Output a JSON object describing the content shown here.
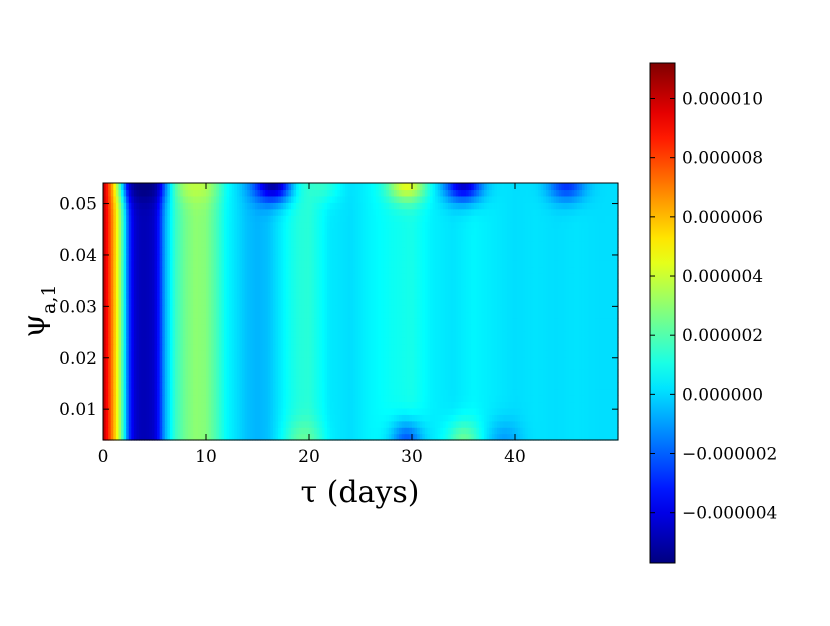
{
  "chart_data": {
    "type": "heatmap",
    "title": "",
    "xlabel": "τ (days)",
    "ylabel": "ψ",
    "ylabel_subscript": "a,1",
    "xlim": [
      0,
      50
    ],
    "ylim": [
      0.004,
      0.054
    ],
    "x_ticks": [
      {
        "value": 0,
        "label": "0"
      },
      {
        "value": 10,
        "label": "10"
      },
      {
        "value": 20,
        "label": "20"
      },
      {
        "value": 30,
        "label": "30"
      },
      {
        "value": 40,
        "label": "40"
      }
    ],
    "y_ticks": [
      {
        "value": 0.01,
        "label": "0.01"
      },
      {
        "value": 0.02,
        "label": "0.02"
      },
      {
        "value": 0.03,
        "label": "0.03"
      },
      {
        "value": 0.04,
        "label": "0.04"
      },
      {
        "value": 0.05,
        "label": "0.05"
      }
    ],
    "colormap": "jet",
    "color_range": [
      -5.7e-06,
      1.12e-05
    ],
    "colorbar_ticks": [
      {
        "value": 1e-05,
        "label": "0.000010"
      },
      {
        "value": 8e-06,
        "label": "0.000008"
      },
      {
        "value": 6e-06,
        "label": "0.000006"
      },
      {
        "value": 4e-06,
        "label": "0.000004"
      },
      {
        "value": 2e-06,
        "label": "0.000002"
      },
      {
        "value": 0.0,
        "label": "0.000000"
      },
      {
        "value": -2e-06,
        "label": "−0.000002"
      },
      {
        "value": -4e-06,
        "label": "−0.000004"
      }
    ],
    "x_profile": {
      "tau": [
        0,
        0.5,
        1,
        1.5,
        2,
        2.5,
        3,
        3.5,
        4,
        4.5,
        5,
        5.5,
        6,
        7,
        8,
        9,
        10,
        11,
        12,
        13,
        14,
        15,
        16,
        17,
        18,
        19,
        20,
        21,
        22,
        24,
        26,
        28,
        30,
        32,
        34,
        36,
        38,
        40,
        42,
        44,
        46,
        48,
        50
      ],
      "value": [
        1.05e-05,
        8.5e-06,
        6.5e-06,
        4e-06,
        1.2e-06,
        -2.5e-06,
        -4.2e-06,
        -4.7e-06,
        -4.8e-06,
        -4.7e-06,
        -4.4e-06,
        -3e-06,
        -8e-07,
        1.5e-06,
        2.5e-06,
        3e-06,
        2.8e-06,
        1.8e-06,
        6e-07,
        1e-07,
        -4e-07,
        -6e-07,
        -4e-07,
        2e-07,
        8e-07,
        1.2e-06,
        1.3e-06,
        8e-07,
        3e-07,
        1e-07,
        5e-07,
        8e-07,
        1e-06,
        4e-07,
        2e-07,
        5e-07,
        3e-07,
        1e-07,
        2e-07,
        1e-07,
        2e-07,
        1e-07,
        1e-07
      ]
    },
    "top_band_features": [
      {
        "tau": 4,
        "value": -5.8e-06
      },
      {
        "tau": 9,
        "value": 3.8e-06
      },
      {
        "tau": 16.5,
        "value": -5.2e-06
      },
      {
        "tau": 21,
        "value": 1.5e-06
      },
      {
        "tau": 29.5,
        "value": 4.5e-06
      },
      {
        "tau": 35,
        "value": -4.5e-06
      },
      {
        "tau": 45,
        "value": -2.8e-06
      }
    ],
    "bottom_band_features": [
      {
        "tau": 19.5,
        "value": 2.5e-06
      },
      {
        "tau": 29.5,
        "value": -2.8e-06
      },
      {
        "tau": 35,
        "value": 2.8e-06
      },
      {
        "tau": 39,
        "value": -1.2e-06
      }
    ]
  }
}
